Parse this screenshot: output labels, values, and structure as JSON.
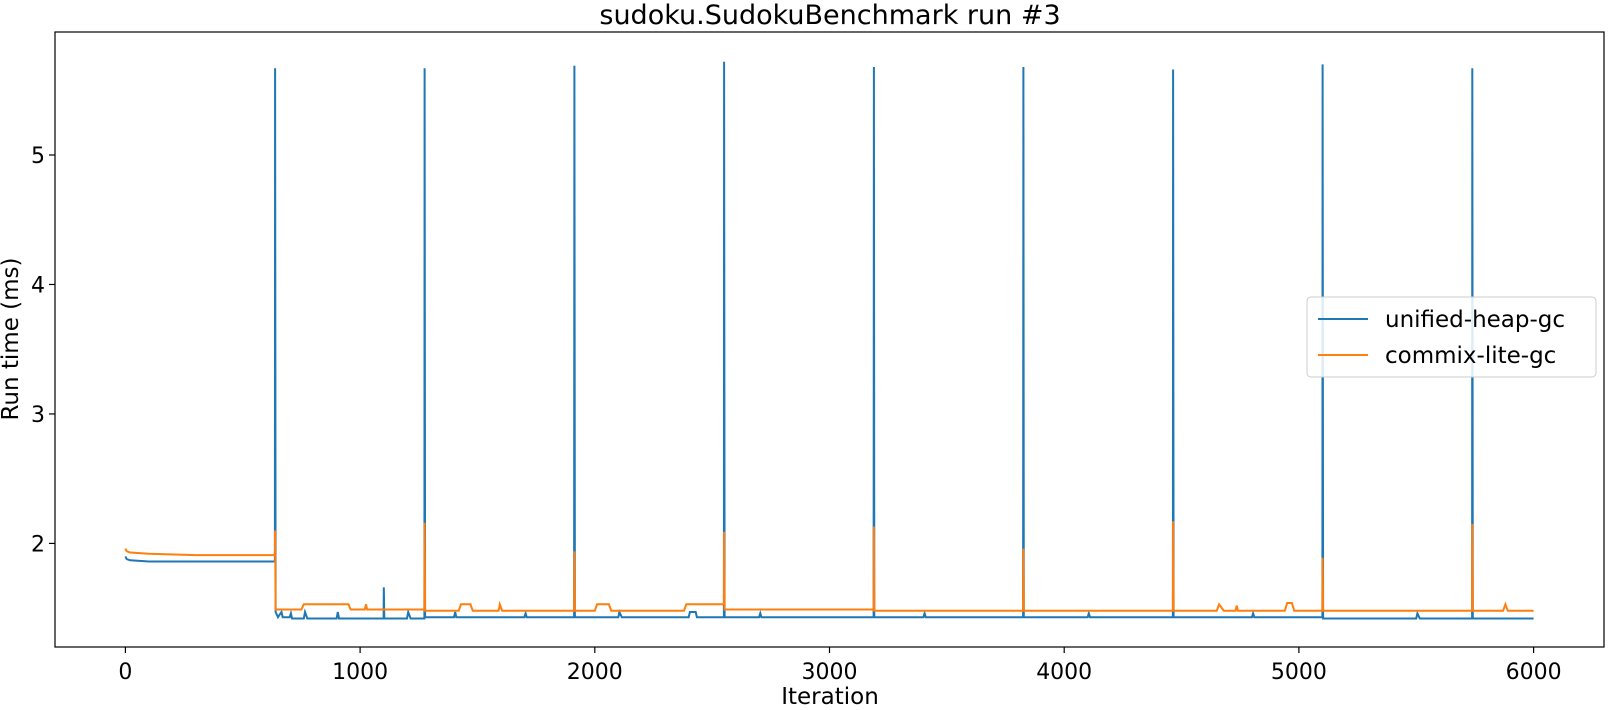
{
  "chart_data": {
    "type": "line",
    "title": "sudoku.SudokuBenchmark run #3",
    "xlabel": "Iteration",
    "ylabel": "Run time (ms)",
    "xlim": [
      -300,
      6300
    ],
    "ylim": [
      1.2,
      5.95
    ],
    "xticks": [
      0,
      1000,
      2000,
      3000,
      4000,
      5000,
      6000
    ],
    "yticks": [
      2,
      3,
      4,
      5
    ],
    "grid": false,
    "legend_position": "center-right",
    "series": [
      {
        "name": "unified-heap-gc",
        "color": "#1f77b4",
        "points": [
          [
            0,
            1.9
          ],
          [
            5,
            1.88
          ],
          [
            20,
            1.87
          ],
          [
            100,
            1.86
          ],
          [
            300,
            1.86
          ],
          [
            500,
            1.86
          ],
          [
            637,
            1.86
          ],
          [
            638,
            5.67
          ],
          [
            640,
            1.47
          ],
          [
            650,
            1.43
          ],
          [
            665,
            1.47
          ],
          [
            670,
            1.43
          ],
          [
            700,
            1.43
          ],
          [
            705,
            1.46
          ],
          [
            710,
            1.42
          ],
          [
            760,
            1.42
          ],
          [
            765,
            1.47
          ],
          [
            775,
            1.42
          ],
          [
            900,
            1.42
          ],
          [
            905,
            1.47
          ],
          [
            910,
            1.42
          ],
          [
            1100,
            1.42
          ],
          [
            1101,
            1.66
          ],
          [
            1103,
            1.42
          ],
          [
            1200,
            1.42
          ],
          [
            1205,
            1.47
          ],
          [
            1215,
            1.42
          ],
          [
            1274,
            1.42
          ],
          [
            1275,
            5.67
          ],
          [
            1277,
            1.43
          ],
          [
            1400,
            1.43
          ],
          [
            1405,
            1.47
          ],
          [
            1410,
            1.43
          ],
          [
            1700,
            1.43
          ],
          [
            1705,
            1.46
          ],
          [
            1710,
            1.43
          ],
          [
            1912,
            1.43
          ],
          [
            1913,
            5.69
          ],
          [
            1915,
            1.43
          ],
          [
            2100,
            1.43
          ],
          [
            2105,
            1.47
          ],
          [
            2115,
            1.43
          ],
          [
            2400,
            1.43
          ],
          [
            2405,
            1.47
          ],
          [
            2430,
            1.47
          ],
          [
            2435,
            1.43
          ],
          [
            2550,
            1.43
          ],
          [
            2551,
            5.72
          ],
          [
            2553,
            1.43
          ],
          [
            2700,
            1.43
          ],
          [
            2705,
            1.46
          ],
          [
            2710,
            1.43
          ],
          [
            3188,
            1.43
          ],
          [
            3189,
            5.68
          ],
          [
            3191,
            1.43
          ],
          [
            3400,
            1.43
          ],
          [
            3405,
            1.46
          ],
          [
            3410,
            1.43
          ],
          [
            3825,
            1.43
          ],
          [
            3826,
            5.68
          ],
          [
            3828,
            1.43
          ],
          [
            4100,
            1.43
          ],
          [
            4105,
            1.46
          ],
          [
            4110,
            1.43
          ],
          [
            4463,
            1.43
          ],
          [
            4464,
            5.66
          ],
          [
            4466,
            1.43
          ],
          [
            4800,
            1.43
          ],
          [
            4805,
            1.46
          ],
          [
            4810,
            1.43
          ],
          [
            5100,
            1.43
          ],
          [
            5101,
            5.7
          ],
          [
            5103,
            1.42
          ],
          [
            5500,
            1.42
          ],
          [
            5505,
            1.46
          ],
          [
            5515,
            1.42
          ],
          [
            5738,
            1.42
          ],
          [
            5739,
            5.67
          ],
          [
            5741,
            1.42
          ],
          [
            6000,
            1.42
          ]
        ]
      },
      {
        "name": "commix-lite-gc",
        "color": "#ff7f0e",
        "points": [
          [
            0,
            1.96
          ],
          [
            5,
            1.94
          ],
          [
            20,
            1.93
          ],
          [
            100,
            1.92
          ],
          [
            300,
            1.91
          ],
          [
            500,
            1.91
          ],
          [
            637,
            1.91
          ],
          [
            638,
            2.1
          ],
          [
            640,
            1.49
          ],
          [
            750,
            1.49
          ],
          [
            760,
            1.53
          ],
          [
            950,
            1.53
          ],
          [
            960,
            1.49
          ],
          [
            1020,
            1.49
          ],
          [
            1025,
            1.53
          ],
          [
            1030,
            1.49
          ],
          [
            1274,
            1.49
          ],
          [
            1275,
            2.16
          ],
          [
            1277,
            1.48
          ],
          [
            1420,
            1.48
          ],
          [
            1430,
            1.53
          ],
          [
            1470,
            1.53
          ],
          [
            1480,
            1.48
          ],
          [
            1590,
            1.48
          ],
          [
            1595,
            1.53
          ],
          [
            1605,
            1.48
          ],
          [
            1912,
            1.48
          ],
          [
            1913,
            1.94
          ],
          [
            1915,
            1.48
          ],
          [
            2000,
            1.48
          ],
          [
            2010,
            1.53
          ],
          [
            2060,
            1.53
          ],
          [
            2070,
            1.48
          ],
          [
            2380,
            1.48
          ],
          [
            2390,
            1.53
          ],
          [
            2540,
            1.53
          ],
          [
            2550,
            1.53
          ],
          [
            2551,
            2.09
          ],
          [
            2553,
            1.49
          ],
          [
            3188,
            1.49
          ],
          [
            3189,
            2.13
          ],
          [
            3191,
            1.48
          ],
          [
            3825,
            1.48
          ],
          [
            3826,
            1.96
          ],
          [
            3828,
            1.48
          ],
          [
            4463,
            1.48
          ],
          [
            4464,
            2.17
          ],
          [
            4466,
            1.48
          ],
          [
            4650,
            1.48
          ],
          [
            4660,
            1.53
          ],
          [
            4680,
            1.48
          ],
          [
            4730,
            1.48
          ],
          [
            4735,
            1.52
          ],
          [
            4740,
            1.48
          ],
          [
            4940,
            1.48
          ],
          [
            4950,
            1.54
          ],
          [
            4970,
            1.54
          ],
          [
            4980,
            1.48
          ],
          [
            5100,
            1.48
          ],
          [
            5101,
            1.89
          ],
          [
            5103,
            1.48
          ],
          [
            5738,
            1.48
          ],
          [
            5739,
            2.15
          ],
          [
            5741,
            1.48
          ],
          [
            5870,
            1.48
          ],
          [
            5880,
            1.53
          ],
          [
            5890,
            1.48
          ],
          [
            6000,
            1.48
          ]
        ]
      }
    ]
  }
}
